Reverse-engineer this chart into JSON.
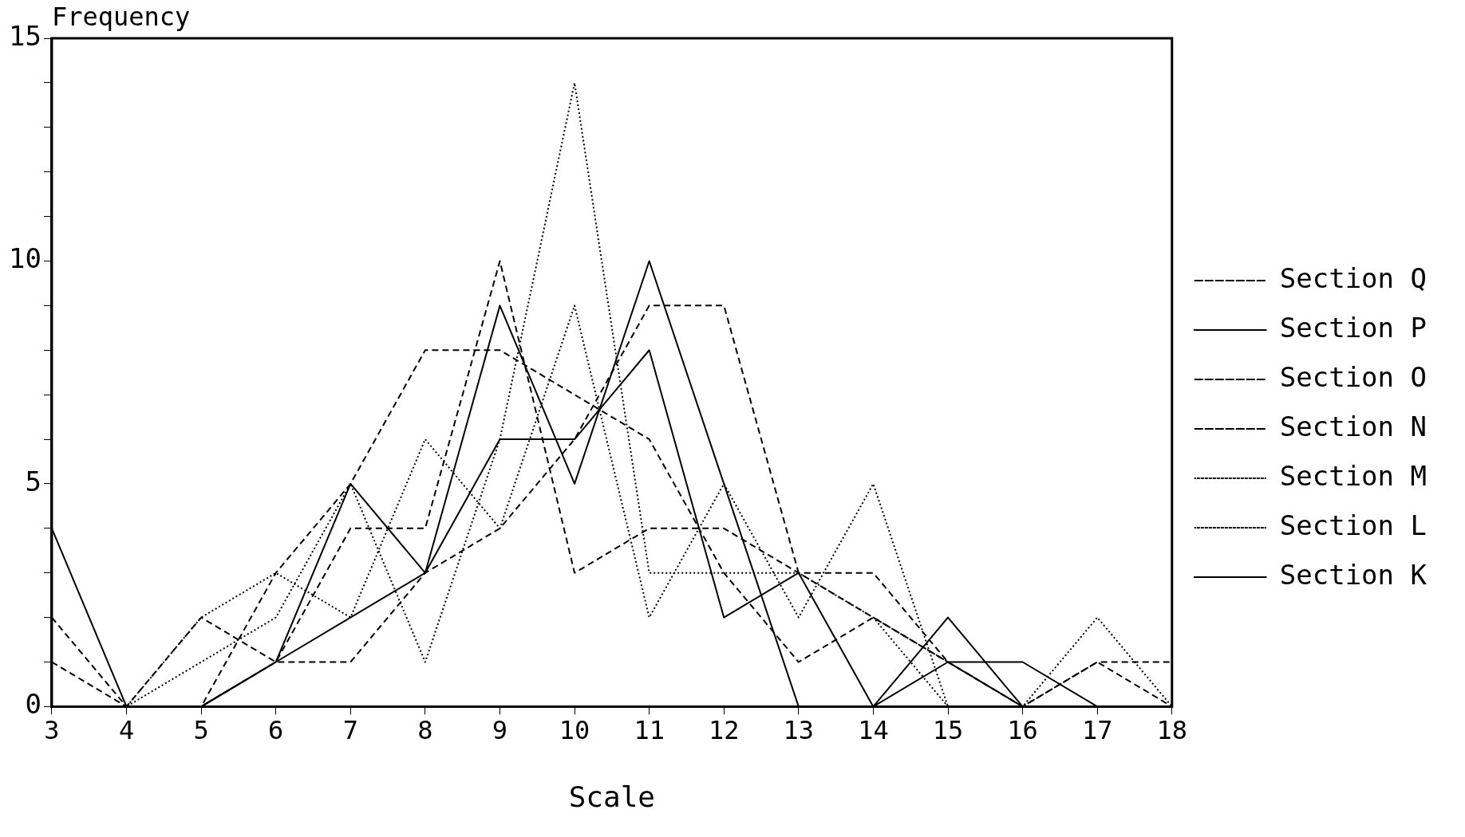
{
  "chart_data": {
    "type": "line",
    "xlabel": "Scale",
    "ylabel": "Frequency",
    "categories": [
      "3",
      "4",
      "5",
      "6",
      "7",
      "8",
      "9",
      "10",
      "11",
      "12",
      "13",
      "14",
      "15",
      "16",
      "17",
      "18"
    ],
    "ylim": [
      0,
      15
    ],
    "yticks": [
      0,
      {
        "value": 1,
        "label": null
      },
      {
        "value": 2,
        "label": null
      },
      {
        "value": 3,
        "label": null
      },
      {
        "value": 4,
        "label": null
      },
      5,
      {
        "value": 6,
        "label": null
      },
      {
        "value": 7,
        "label": null
      },
      {
        "value": 8,
        "label": null
      },
      {
        "value": 9,
        "label": null
      },
      10,
      {
        "value": 11,
        "label": null
      },
      {
        "value": 12,
        "label": null
      },
      {
        "value": 13,
        "label": null
      },
      {
        "value": 14,
        "label": null
      },
      15
    ],
    "grid": false,
    "legend": "right",
    "marker": "none",
    "series": [
      {
        "name": "Section Q",
        "color": "#000000",
        "line_style": "dashed",
        "values": [
          2,
          0,
          0,
          1,
          1,
          3,
          4,
          6,
          9,
          9,
          3,
          2,
          1,
          0,
          0,
          0
        ]
      },
      {
        "name": "Section P",
        "color": "#000000",
        "line_style": "solid",
        "values": [
          0,
          0,
          0,
          1,
          5,
          3,
          9,
          5,
          10,
          5,
          0,
          0,
          1,
          1,
          0,
          0
        ]
      },
      {
        "name": "Section O",
        "color": "#000000",
        "line_style": "dashed",
        "values": [
          1,
          0,
          0,
          3,
          5,
          8,
          8,
          7,
          6,
          3,
          1,
          2,
          1,
          0,
          1,
          0
        ]
      },
      {
        "name": "Section N",
        "color": "#000000",
        "line_style": "dashed",
        "values": [
          0,
          0,
          2,
          1,
          4,
          4,
          10,
          3,
          4,
          4,
          3,
          3,
          1,
          0,
          1,
          1
        ]
      },
      {
        "name": "Section M",
        "color": "#000000",
        "line_style": "dotted",
        "values": [
          0,
          0,
          1,
          2,
          5,
          1,
          6,
          14,
          3,
          3,
          3,
          2,
          0,
          0,
          0,
          0
        ]
      },
      {
        "name": "Section L",
        "color": "#000000",
        "line_style": "dotted",
        "values": [
          0,
          0,
          2,
          3,
          2,
          6,
          4,
          9,
          2,
          5,
          2,
          5,
          0,
          0,
          2,
          0
        ]
      },
      {
        "name": "Section K",
        "color": "#000000",
        "line_style": "solid",
        "values": [
          4,
          0,
          0,
          1,
          2,
          3,
          6,
          6,
          8,
          2,
          3,
          0,
          2,
          0,
          0,
          0
        ]
      }
    ]
  }
}
